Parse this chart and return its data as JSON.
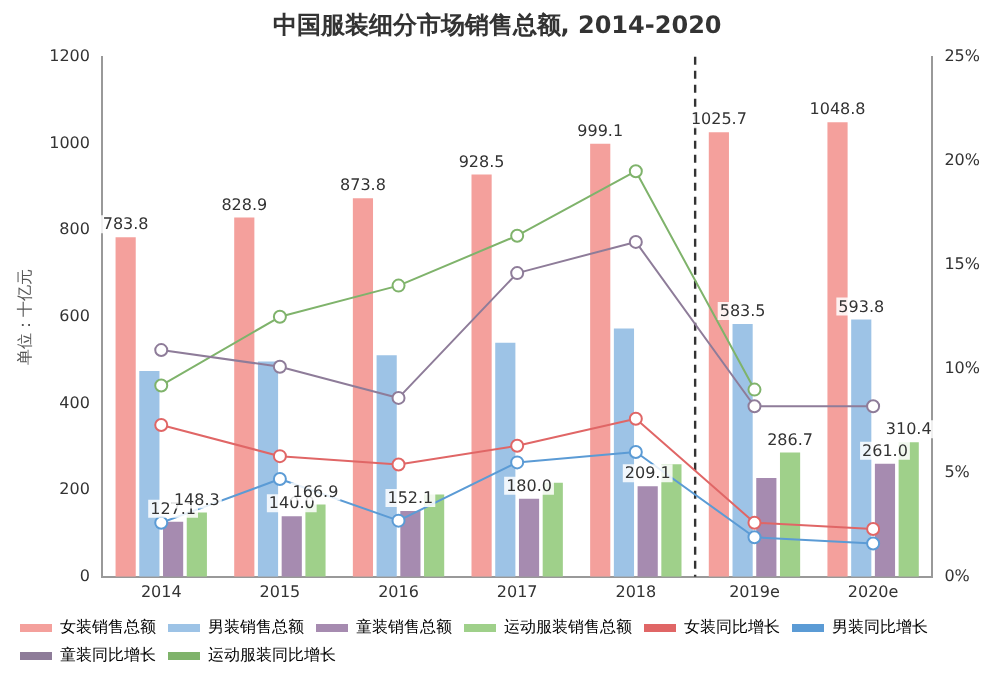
{
  "chart_data": {
    "type": "bar",
    "title": "中国服装细分市场销售总额, 2014-2020",
    "ylabel": "单位：十亿元",
    "categories": [
      "2014",
      "2015",
      "2016",
      "2017",
      "2018",
      "2019e",
      "2020e"
    ],
    "series": [
      {
        "name": "女装销售总额",
        "color": "#f4a09c",
        "values": [
          783.8,
          828.9,
          873.8,
          928.5,
          999.1,
          1025.7,
          1048.8
        ],
        "value_labels": [
          "783.8",
          "828.9",
          "873.8",
          "928.5",
          "999.1",
          "1025.7",
          "1048.8"
        ]
      },
      {
        "name": "男装销售总额",
        "color": "#9dc3e6",
        "values": [
          475,
          497,
          511,
          540,
          573,
          583.5,
          593.8
        ],
        "value_labels": [
          null,
          null,
          null,
          null,
          null,
          "583.5",
          "593.8"
        ]
      },
      {
        "name": "童装销售总额",
        "color": "#a68bb0",
        "values": [
          127.1,
          140.0,
          152.1,
          180.0,
          209.1,
          228,
          261.0
        ],
        "value_labels": [
          "127.1",
          "140.0",
          "152.1",
          "180.0",
          "209.1",
          null,
          "261.0"
        ]
      },
      {
        "name": "运动服装销售总额",
        "color": "#9fd08a",
        "values": [
          148.3,
          166.9,
          190,
          217,
          260,
          286.7,
          310.4
        ],
        "value_labels": [
          "148.3",
          "166.9",
          null,
          null,
          null,
          "286.7",
          "310.4"
        ]
      },
      {
        "name": "女装同比增长",
        "type": "line",
        "axis": "y2",
        "color": "#e06666",
        "values": [
          7.3,
          5.8,
          5.4,
          6.3,
          7.6,
          2.6,
          2.3
        ]
      },
      {
        "name": "男装同比增长",
        "type": "line",
        "axis": "y2",
        "color": "#5b9bd5",
        "values": [
          2.6,
          4.7,
          2.7,
          5.5,
          6.0,
          1.9,
          1.6
        ]
      },
      {
        "name": "童装同比增长",
        "type": "line",
        "axis": "y2",
        "color": "#8e7c99",
        "values": [
          10.9,
          10.1,
          8.6,
          14.6,
          16.1,
          8.2,
          8.2
        ]
      },
      {
        "name": "运动服装同比增长",
        "type": "line",
        "axis": "y2",
        "color": "#7fb36b",
        "values": [
          9.2,
          12.5,
          14.0,
          16.4,
          19.5,
          9.0,
          null
        ]
      }
    ],
    "ylim": [
      0,
      1200
    ],
    "yticks": [
      0,
      200,
      400,
      600,
      800,
      1000,
      1200
    ],
    "y2lim": [
      0,
      25
    ],
    "y2ticks": [
      {
        "value": 0,
        "label": "0%"
      },
      {
        "value": 5,
        "label": "5%"
      },
      {
        "value": 10,
        "label": "10%"
      },
      {
        "value": 15,
        "label": "15%"
      },
      {
        "value": 20,
        "label": "20%"
      },
      {
        "value": 25,
        "label": "25%"
      }
    ],
    "grid": false,
    "legend": "bottom",
    "marker": "circle"
  }
}
